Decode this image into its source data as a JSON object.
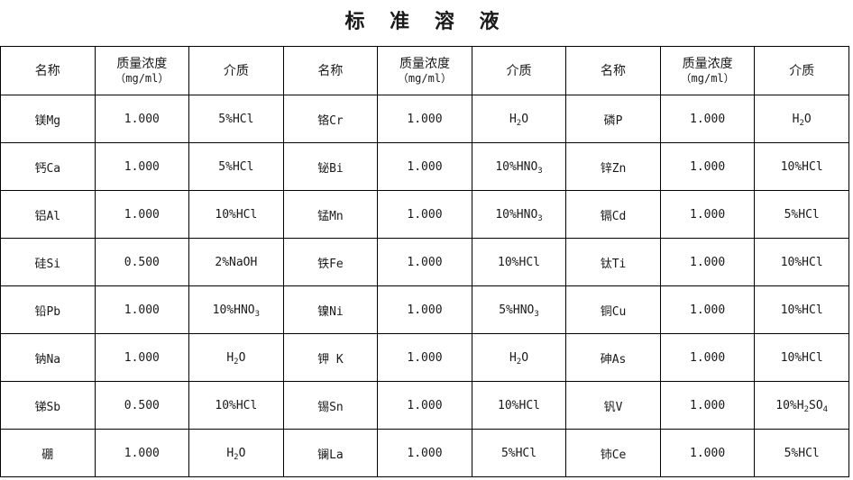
{
  "title": "标 准 溶 液",
  "header": {
    "name": "名称",
    "conc_main": "质量浓度",
    "conc_unit": "（mg/ml）",
    "medium": "介质"
  },
  "rows": [
    [
      [
        "镁Mg",
        "1.000",
        "5%HCl"
      ],
      [
        "铬Cr",
        "1.000",
        "H2O"
      ],
      [
        "磷P",
        "1.000",
        "H2O"
      ]
    ],
    [
      [
        "钙Ca",
        "1.000",
        "5%HCl"
      ],
      [
        "铋Bi",
        "1.000",
        "10%HNO3"
      ],
      [
        "锌Zn",
        "1.000",
        "10%HCl"
      ]
    ],
    [
      [
        "铝Al",
        "1.000",
        "10%HCl"
      ],
      [
        "锰Mn",
        "1.000",
        "10%HNO3"
      ],
      [
        "镉Cd",
        "1.000",
        "5%HCl"
      ]
    ],
    [
      [
        "硅Si",
        "0.500",
        "2%NaOH"
      ],
      [
        "铁Fe",
        "1.000",
        "10%HCl"
      ],
      [
        "钛Ti",
        "1.000",
        "10%HCl"
      ]
    ],
    [
      [
        "铅Pb",
        "1.000",
        "10%HNO3"
      ],
      [
        "镍Ni",
        "1.000",
        "5%HNO3"
      ],
      [
        "铜Cu",
        "1.000",
        "10%HCl"
      ]
    ],
    [
      [
        "钠Na",
        "1.000",
        "H2O"
      ],
      [
        "钾 K",
        "1.000",
        "H2O"
      ],
      [
        "砷As",
        "1.000",
        "10%HCl"
      ]
    ],
    [
      [
        "锑Sb",
        "0.500",
        "10%HCl"
      ],
      [
        "锡Sn",
        "1.000",
        "10%HCl"
      ],
      [
        "钒V",
        "1.000",
        "10%H2SO4"
      ]
    ],
    [
      [
        "硼",
        "1.000",
        "H2O"
      ],
      [
        "镧La",
        "1.000",
        "5%HCl"
      ],
      [
        "铈Ce",
        "1.000",
        "5%HCl"
      ]
    ]
  ]
}
